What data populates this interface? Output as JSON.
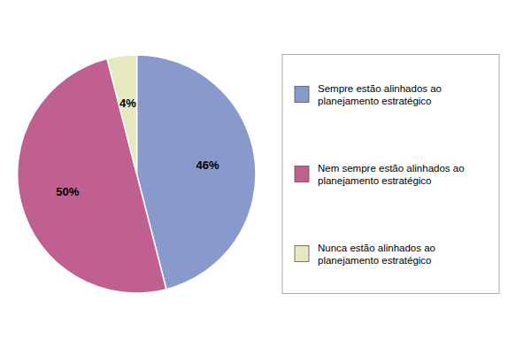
{
  "chart_data": {
    "type": "pie",
    "categories": [
      "Sempre estão alinhados ao\nplanejamento estratégico",
      "Nem sempre estão alinhados ao\nplanejamento estratégico",
      "Nunca estão alinhados ao\nplanejamento estratégico"
    ],
    "values": [
      46,
      50,
      4
    ],
    "value_labels": [
      "46%",
      "50%",
      "4%"
    ],
    "colors": [
      "#8899cc",
      "#c06090",
      "#e8e8c0"
    ],
    "data_labels": true,
    "legend": "right"
  }
}
